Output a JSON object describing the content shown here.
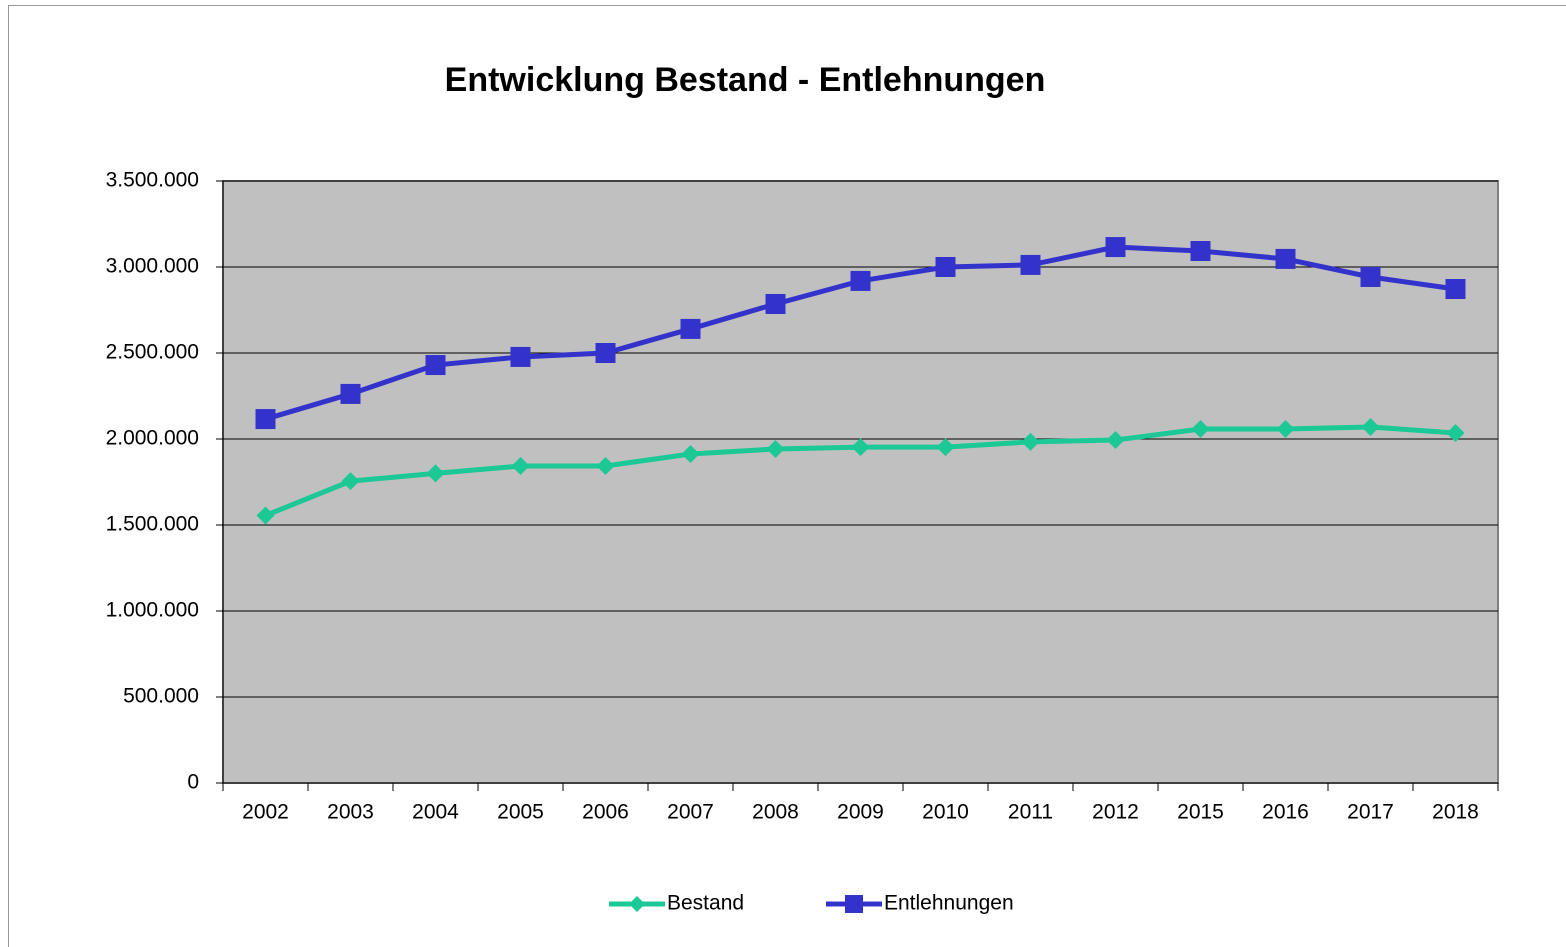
{
  "chart_data": {
    "type": "line",
    "title": "Entwicklung Bestand - Entlehnungen",
    "categories": [
      "2002",
      "2003",
      "2004",
      "2005",
      "2006",
      "2007",
      "2008",
      "2009",
      "2010",
      "2011",
      "2012",
      "2015",
      "2016",
      "2017",
      "2018"
    ],
    "series": [
      {
        "name": "Bestand",
        "color": "#1cc896",
        "marker": "diamond",
        "values": [
          1555000,
          1755000,
          1800000,
          1843000,
          1843000,
          1913000,
          1942000,
          1953000,
          1953000,
          1983000,
          1994000,
          2058000,
          2058000,
          2070000,
          2035000
        ]
      },
      {
        "name": "Entlehnungen",
        "color": "#3333cc",
        "marker": "square",
        "values": [
          2116000,
          2262000,
          2430000,
          2477000,
          2500000,
          2640000,
          2785000,
          2919000,
          3000000,
          3012000,
          3116000,
          3093000,
          3047000,
          2942000,
          2872000
        ]
      }
    ],
    "ylim": [
      0,
      3500000
    ],
    "yticks": [
      0,
      {
        "value": 500000,
        "label": "500.000"
      },
      {
        "value": 1000000,
        "label": "1.000.000"
      },
      {
        "value": 1500000,
        "label": "1.500.000"
      },
      {
        "value": 2000000,
        "label": "2.000.000"
      },
      {
        "value": 2500000,
        "label": "2.500.000"
      },
      {
        "value": 3000000,
        "label": "3.000.000"
      },
      {
        "value": 3500000,
        "label": "3.500.000"
      }
    ],
    "grid": true,
    "legend": "bottom",
    "plot_background": "#c0c0c0"
  }
}
